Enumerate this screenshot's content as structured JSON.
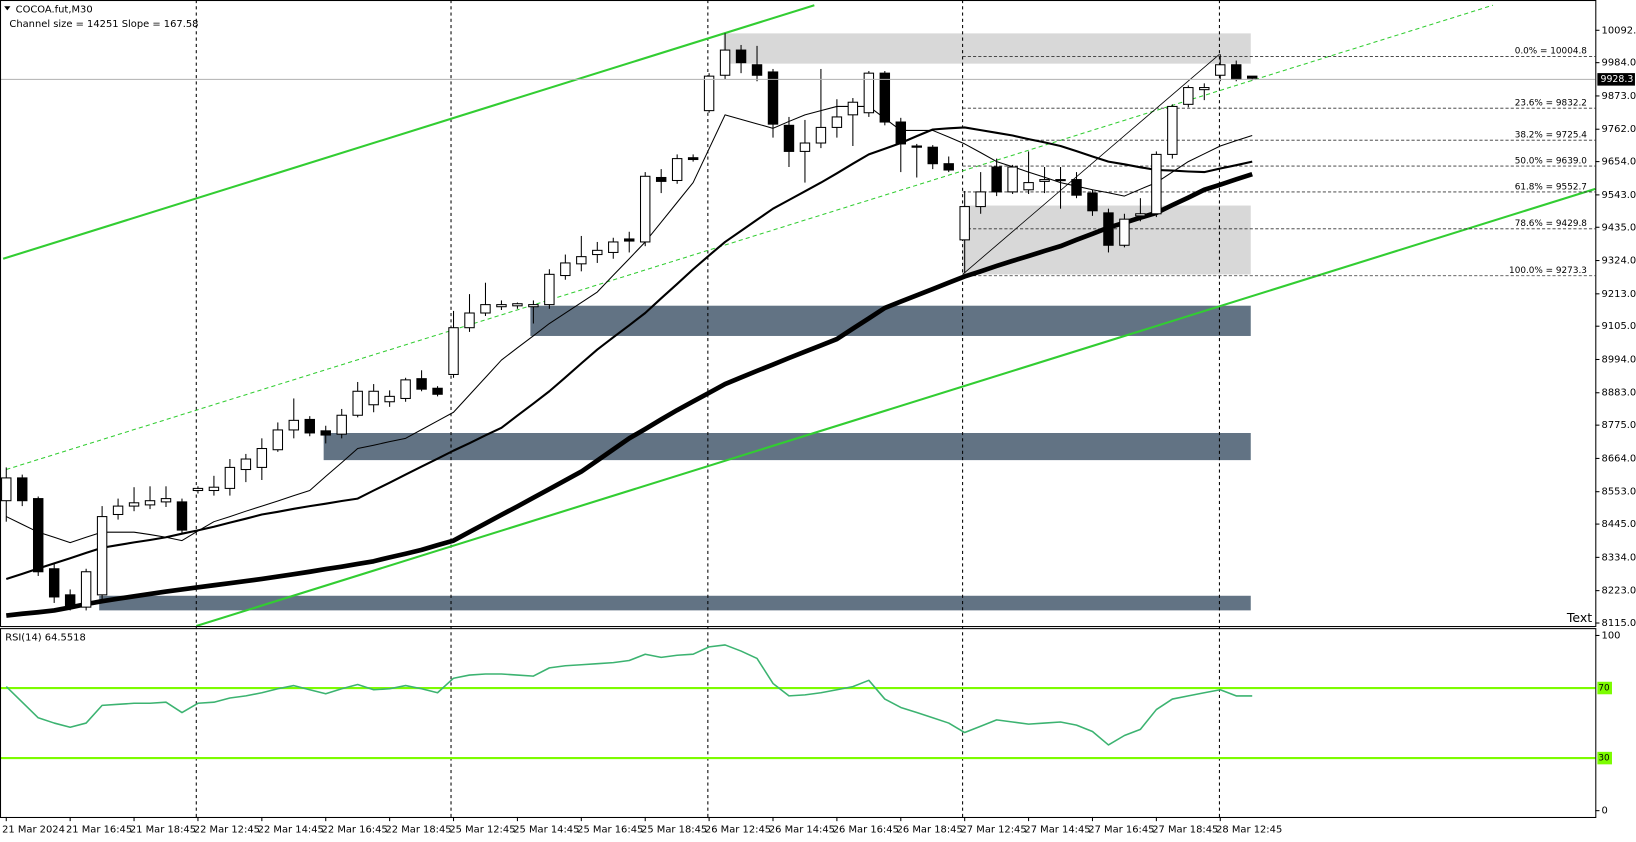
{
  "chart_data": [
    {
      "type": "candlestick",
      "title": "COCOA.fut,M30",
      "subtitle": "Channel size = 14251 Slope = 167.58",
      "annotation": "Text",
      "categories": [
        "21 Mar 2024",
        null,
        null,
        null,
        "21 Mar 16:45",
        null,
        null,
        null,
        "21 Mar 18:45",
        null,
        null,
        null,
        "22 Mar 12:45",
        null,
        null,
        null,
        "22 Mar 14:45",
        null,
        null,
        null,
        "22 Mar 16:45",
        null,
        null,
        null,
        "22 Mar 18:45",
        null,
        null,
        null,
        "25 Mar 12:45",
        null,
        null,
        null,
        "25 Mar 14:45",
        null,
        null,
        null,
        "25 Mar 16:45",
        null,
        null,
        null,
        "25 Mar 18:45",
        null,
        null,
        null,
        "26 Mar 12:45",
        null,
        null,
        null,
        "26 Mar 14:45",
        null,
        null,
        null,
        "26 Mar 16:45",
        null,
        null,
        null,
        "26 Mar 18:45",
        null,
        null,
        null,
        "27 Mar 12:45",
        null,
        null,
        null,
        "27 Mar 14:45",
        null,
        null,
        null,
        "27 Mar 16:45",
        null,
        null,
        null,
        "27 Mar 18:45",
        null,
        null,
        null,
        "28 Mar 12:45",
        null,
        null
      ],
      "open": [
        8523,
        8599,
        8530,
        8296,
        8209,
        8168,
        8209,
        8477,
        8505,
        8509,
        8519,
        8519,
        8557,
        8557,
        8564,
        8627,
        8634,
        8693,
        8759,
        8794,
        8756,
        8745,
        8808,
        8843,
        8853,
        8864,
        8930,
        8898,
        8944,
        9100,
        9149,
        9170,
        9173,
        9170,
        9177,
        9274,
        9313,
        9344,
        9351,
        9396,
        9386,
        9601,
        9591,
        9667,
        9824,
        9942,
        10026,
        9977,
        9953,
        9775,
        9688,
        9716,
        9768,
        9810,
        9817,
        9949,
        9786,
        9706,
        9702,
        9647,
        9393,
        9504,
        9636,
        9553,
        9560,
        9588,
        9591,
        9594,
        9549,
        9483,
        9375,
        9473,
        9480,
        9678,
        9845,
        9894,
        9942,
        9977,
        9939
      ],
      "high": [
        8634,
        8610,
        8537,
        8314,
        8227,
        8296,
        8505,
        8530,
        8568,
        8571,
        8571,
        8530,
        8571,
        8606,
        8662,
        8679,
        8731,
        8784,
        8864,
        8805,
        8773,
        8829,
        8919,
        8912,
        8891,
        8933,
        8958,
        8905,
        9156,
        9212,
        9250,
        9191,
        9184,
        9191,
        9295,
        9344,
        9406,
        9386,
        9400,
        9420,
        9619,
        9629,
        9678,
        9678,
        9949,
        10082,
        10043,
        10040,
        9963,
        9803,
        9793,
        9963,
        9862,
        9866,
        9956,
        9956,
        9800,
        9713,
        9709,
        9671,
        9556,
        9619,
        9664,
        9643,
        9688,
        9636,
        9636,
        9619,
        9560,
        9497,
        9480,
        9532,
        9688,
        9845,
        9908,
        9915,
        10012,
        9991,
        9939
      ],
      "low": [
        8453,
        8505,
        8272,
        8182,
        8157,
        8157,
        8192,
        8460,
        8488,
        8495,
        8502,
        8411,
        8547,
        8540,
        8540,
        8585,
        8592,
        8686,
        8731,
        8738,
        8714,
        8731,
        8801,
        8818,
        8836,
        8853,
        8888,
        8871,
        8933,
        9086,
        9139,
        9159,
        9163,
        9114,
        9163,
        9260,
        9288,
        9316,
        9330,
        9351,
        9372,
        9549,
        9580,
        9654,
        9817,
        9928,
        9949,
        9922,
        9734,
        9636,
        9584,
        9699,
        9734,
        9706,
        9803,
        9775,
        9619,
        9601,
        9629,
        9619,
        9281,
        9480,
        9539,
        9546,
        9546,
        9549,
        9497,
        9532,
        9473,
        9351,
        9368,
        9455,
        9469,
        9664,
        9835,
        9859,
        9922,
        9922,
        9925
      ],
      "close": [
        8599,
        8523,
        8286,
        8202,
        8168,
        8286,
        8470,
        8505,
        8516,
        8523,
        8530,
        8425,
        8564,
        8568,
        8634,
        8662,
        8697,
        8759,
        8791,
        8749,
        8742,
        8808,
        8888,
        8888,
        8871,
        8926,
        8895,
        8878,
        9100,
        9149,
        9177,
        9177,
        9180,
        9177,
        9278,
        9316,
        9337,
        9358,
        9386,
        9389,
        9605,
        9588,
        9664,
        9661,
        9939,
        10026,
        9984,
        9942,
        9779,
        9688,
        9716,
        9768,
        9803,
        9852,
        9949,
        9786,
        9713,
        9702,
        9647,
        9626,
        9504,
        9553,
        9553,
        9636,
        9584,
        9594,
        9594,
        9542,
        9490,
        9375,
        9462,
        9480,
        9678,
        9838,
        9901,
        9901,
        9977,
        9928,
        9932
      ],
      "up_color": "#ffffff",
      "down_color": "#000000",
      "lines": [
        {
          "color": "#000000",
          "width": 1,
          "values": [
            8470,
            8444,
            8418,
            8401,
            8383,
            8401,
            8418,
            8418,
            8418,
            8410,
            8401,
            8390,
            8422,
            8453,
            8470,
            8488,
            8505,
            8522,
            8540,
            8557,
            8604,
            8650,
            8697,
            8708,
            8720,
            8731,
            8760,
            8789,
            8818,
            8876,
            8934,
            8992,
            9033,
            9073,
            9114,
            9149,
            9184,
            9219,
            9275,
            9330,
            9386,
            9452,
            9518,
            9584,
            9697,
            9810,
            9795,
            9780,
            9765,
            9788,
            9810,
            9824,
            9838,
            9838,
            9838,
            9798,
            9758,
            9758,
            9758,
            9736,
            9713,
            9684,
            9654,
            9637,
            9619,
            9602,
            9584,
            9572,
            9560,
            9550,
            9539,
            9562,
            9584,
            9619,
            9654,
            9680,
            9706,
            9724,
            9741
          ]
        },
        {
          "color": "#000000",
          "width": 2,
          "values": [
            8262,
            8279,
            8297,
            8314,
            8331,
            8349,
            8366,
            8375,
            8384,
            8392,
            8401,
            8413,
            8424,
            8436,
            8450,
            8463,
            8477,
            8486,
            8496,
            8505,
            8513,
            8522,
            8530,
            8557,
            8583,
            8610,
            8637,
            8663,
            8690,
            8715,
            8741,
            8766,
            8807,
            8847,
            8888,
            8934,
            8981,
            9027,
            9068,
            9108,
            9149,
            9198,
            9246,
            9295,
            9341,
            9386,
            9423,
            9460,
            9497,
            9526,
            9555,
            9584,
            9615,
            9647,
            9678,
            9697,
            9716,
            9739,
            9761,
            9765,
            9768,
            9759,
            9750,
            9741,
            9729,
            9718,
            9706,
            9689,
            9671,
            9654,
            9645,
            9635,
            9626,
            9624,
            9621,
            9619,
            9631,
            9642,
            9654
          ]
        },
        {
          "color": "#000000",
          "width": 4.5,
          "values": [
            8140,
            8146,
            8151,
            8157,
            8167,
            8178,
            8188,
            8196,
            8204,
            8212,
            8220,
            8227,
            8234,
            8241,
            8248,
            8255,
            8262,
            8270,
            8278,
            8286,
            8295,
            8303,
            8312,
            8321,
            8334,
            8346,
            8359,
            8375,
            8390,
            8419,
            8447,
            8476,
            8504,
            8533,
            8562,
            8591,
            8620,
            8657,
            8694,
            8731,
            8762,
            8794,
            8825,
            8854,
            8883,
            8912,
            8934,
            8956,
            8977,
            8999,
            9020,
            9041,
            9062,
            9097,
            9131,
            9166,
            9187,
            9208,
            9229,
            9250,
            9271,
            9288,
            9306,
            9323,
            9339,
            9356,
            9372,
            9393,
            9413,
            9434,
            9450,
            9467,
            9483,
            9509,
            9534,
            9560,
            9577,
            9595,
            9612
          ]
        }
      ],
      "last_price": 9928.3,
      "fib_levels": [
        {
          "price": 10004.8,
          "label": "0.0% = 10004.8"
        },
        {
          "price": 9832.2,
          "label": "23.6% = 9832.2"
        },
        {
          "price": 9725.4,
          "label": "38.2% = 9725.4"
        },
        {
          "price": 9639.0,
          "label": "50.0% = 9639.0"
        },
        {
          "price": 9552.7,
          "label": "61.8% = 9552.7"
        },
        {
          "price": 9429.8,
          "label": "78.6% = 9429.8"
        },
        {
          "price": 9273.3,
          "label": "100.0% = 9273.3"
        }
      ],
      "ylim": [
        8105,
        10193
      ],
      "yticks": [
        {
          "value": 10092,
          "label": "10092.0"
        },
        {
          "value": 9984,
          "label": "9984.0"
        },
        {
          "value": 9873,
          "label": "9873.0"
        },
        {
          "value": 9762,
          "label": "9762.0"
        },
        {
          "value": 9654,
          "label": "9654.0"
        },
        {
          "value": 9543,
          "label": "9543.0"
        },
        {
          "value": 9435,
          "label": "9435.0"
        },
        {
          "value": 9324,
          "label": "9324.0"
        },
        {
          "value": 9213,
          "label": "9213.0"
        },
        {
          "value": 9105,
          "label": "9105.0"
        },
        {
          "value": 8994,
          "label": "8994.0"
        },
        {
          "value": 8883,
          "label": "8883.0"
        },
        {
          "value": 8775,
          "label": "8775.0"
        },
        {
          "value": 8664,
          "label": "8664.0"
        },
        {
          "value": 8553,
          "label": "8553.0"
        },
        {
          "value": 8445,
          "label": "8445.0"
        },
        {
          "value": 8334,
          "label": "8334.0"
        },
        {
          "value": 8223,
          "label": "8223.0"
        },
        {
          "value": 8115,
          "label": "8115.0"
        }
      ]
    },
    {
      "type": "line",
      "title": "RSI(14) 64.5518",
      "values": [
        70.8,
        61.9,
        53,
        50,
        47.6,
        50,
        60.1,
        60.7,
        61.3,
        61.3,
        61.9,
        56,
        61.3,
        61.9,
        64.3,
        65.5,
        67.3,
        69.6,
        71.4,
        69,
        66.7,
        69.6,
        72,
        69,
        69.6,
        71.4,
        69.6,
        67.3,
        75.6,
        77.4,
        78,
        78,
        77.4,
        76.8,
        81.5,
        82.7,
        83.3,
        83.9,
        84.5,
        85.7,
        89.3,
        87.5,
        88.7,
        89.3,
        93.5,
        94.6,
        91.1,
        86.9,
        72.6,
        65.5,
        66.1,
        67.3,
        69,
        70.8,
        74.4,
        63.7,
        58.9,
        56,
        53,
        50,
        44.6,
        48.2,
        51.8,
        50.6,
        49.4,
        50,
        50.6,
        48.8,
        45.2,
        37.5,
        42.9,
        46.4,
        57.7,
        63.7,
        65.5,
        67.3,
        69,
        65.5,
        65.5
      ],
      "color": "#3cb371",
      "levels": [
        70,
        30
      ],
      "level_color": "#7cfc00",
      "ylim": [
        -3.6,
        104.2
      ],
      "yticks": [
        0,
        100
      ]
    }
  ]
}
